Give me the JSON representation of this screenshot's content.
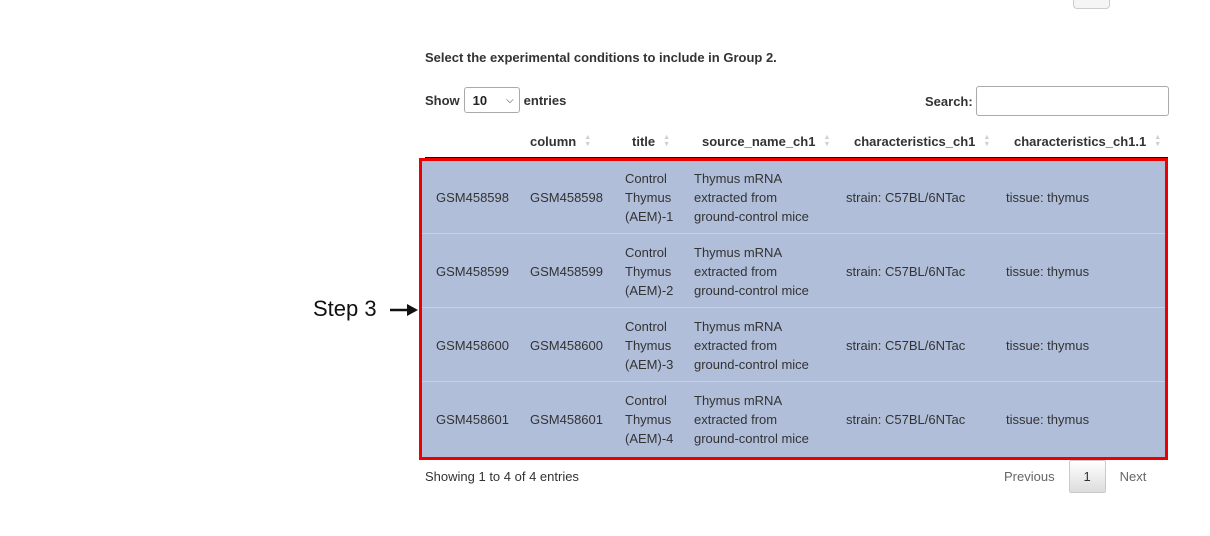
{
  "heading": "Select the experimental conditions to include in Group 2.",
  "length_control": {
    "prefix": "Show",
    "value": "10",
    "suffix": "entries"
  },
  "search": {
    "label": "Search:",
    "value": ""
  },
  "columns": [
    "",
    "column",
    "title",
    "source_name_ch1",
    "characteristics_ch1",
    "characteristics_ch1.1"
  ],
  "rows": [
    {
      "id": "GSM458598",
      "column": "GSM458598",
      "title": [
        "Control",
        "Thymus",
        "(AEM)-1"
      ],
      "source": [
        "Thymus mRNA",
        "extracted from",
        "ground-control mice"
      ],
      "char1": "strain: C57BL/6NTac",
      "char2": "tissue: thymus"
    },
    {
      "id": "GSM458599",
      "column": "GSM458599",
      "title": [
        "Control",
        "Thymus",
        "(AEM)-2"
      ],
      "source": [
        "Thymus mRNA",
        "extracted from",
        "ground-control mice"
      ],
      "char1": "strain: C57BL/6NTac",
      "char2": "tissue: thymus"
    },
    {
      "id": "GSM458600",
      "column": "GSM458600",
      "title": [
        "Control",
        "Thymus",
        "(AEM)-3"
      ],
      "source": [
        "Thymus mRNA",
        "extracted from",
        "ground-control mice"
      ],
      "char1": "strain: C57BL/6NTac",
      "char2": "tissue: thymus"
    },
    {
      "id": "GSM458601",
      "column": "GSM458601",
      "title": [
        "Control",
        "Thymus",
        "(AEM)-4"
      ],
      "source": [
        "Thymus mRNA",
        "extracted from",
        "ground-control mice"
      ],
      "char1": "strain: C57BL/6NTac",
      "char2": "tissue: thymus"
    }
  ],
  "info": "Showing 1 to 4 of 4 entries",
  "pagination": {
    "previous": "Previous",
    "current": "1",
    "next": "Next"
  },
  "annotation": {
    "label": "Step 3",
    "color": "#ee0000"
  },
  "colors": {
    "selected_row": "#b0bed9"
  },
  "icons": {
    "sort": "sort-both-icon",
    "dropdown": "chevron-down-icon",
    "pointer": "arrow-right-icon"
  }
}
